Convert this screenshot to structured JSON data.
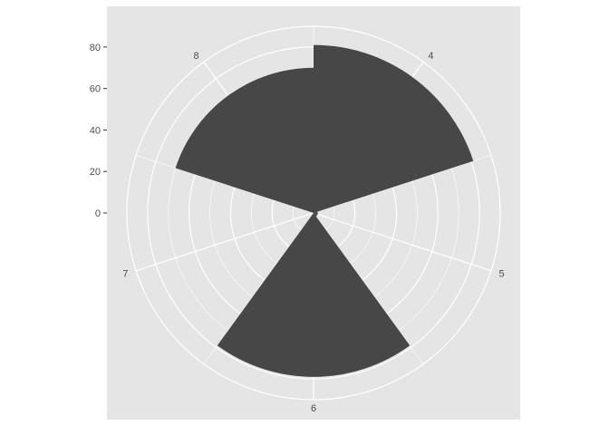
{
  "chart_data": {
    "type": "bar",
    "coord": "polar",
    "categories": [
      "4",
      "5",
      "6",
      "7",
      "8"
    ],
    "values": [
      81,
      2,
      79,
      0,
      70
    ],
    "title": "",
    "xlabel": "",
    "ylabel": "",
    "ylim": [
      0,
      90
    ],
    "y_ticks": [
      0,
      20,
      40,
      60,
      80
    ],
    "grid": true,
    "legend": "none",
    "colors": {
      "panel": "#e5e5e5",
      "grid": "#ffffff",
      "bar": "#474747",
      "text": "#4d4d4d"
    }
  }
}
